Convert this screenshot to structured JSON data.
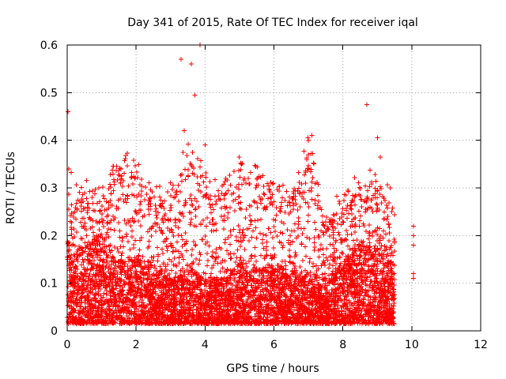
{
  "chart_data": {
    "type": "scatter",
    "title": "Day 341 of 2015, Rate Of TEC Index for receiver iqal",
    "xlabel": "GPS time / hours",
    "ylabel": "ROTI / TECUs",
    "xlim": [
      0,
      12
    ],
    "ylim": [
      0,
      0.6
    ],
    "x_ticks": [
      0,
      2,
      4,
      6,
      8,
      10,
      12
    ],
    "x_tick_labels": [
      "0",
      "2",
      "4",
      "6",
      "8",
      "10",
      "12"
    ],
    "y_ticks": [
      0,
      0.1,
      0.2,
      0.3,
      0.4,
      0.5,
      0.6
    ],
    "y_tick_labels": [
      "0",
      "0.1",
      "0.2",
      "0.3",
      "0.4",
      "0.5",
      "0.6"
    ],
    "grid": true,
    "marker": "+",
    "marker_color": "#ff0000",
    "sampling": {
      "main_start_hours": 0.0,
      "main_end_hours": 9.5,
      "gap_after_hours": 10.0,
      "approx_points": 6400,
      "note": "Dense point cloud; envelope values estimated from the figure"
    },
    "envelope": {
      "x": [
        0.0,
        0.5,
        1.0,
        1.5,
        2.0,
        2.5,
        3.0,
        3.5,
        4.0,
        4.5,
        5.0,
        5.5,
        6.0,
        6.5,
        7.0,
        7.5,
        8.0,
        8.5,
        9.0,
        9.5
      ],
      "typical_max": [
        0.26,
        0.29,
        0.27,
        0.34,
        0.33,
        0.27,
        0.28,
        0.36,
        0.31,
        0.28,
        0.33,
        0.31,
        0.28,
        0.27,
        0.37,
        0.22,
        0.25,
        0.31,
        0.3,
        0.26
      ],
      "median": [
        0.1,
        0.1,
        0.12,
        0.08,
        0.09,
        0.08,
        0.06,
        0.08,
        0.06,
        0.06,
        0.08,
        0.07,
        0.08,
        0.07,
        0.07,
        0.06,
        0.08,
        0.11,
        0.1,
        0.08
      ]
    },
    "notable_points": [
      {
        "x": 0.02,
        "y": 0.46
      },
      {
        "x": 0.05,
        "y": 0.34
      },
      {
        "x": 3.3,
        "y": 0.57
      },
      {
        "x": 3.6,
        "y": 0.56
      },
      {
        "x": 3.85,
        "y": 0.6
      },
      {
        "x": 3.7,
        "y": 0.495
      },
      {
        "x": 3.4,
        "y": 0.42
      },
      {
        "x": 4.0,
        "y": 0.39
      },
      {
        "x": 7.1,
        "y": 0.41
      },
      {
        "x": 8.7,
        "y": 0.475
      },
      {
        "x": 9.0,
        "y": 0.405
      }
    ],
    "late_points": [
      {
        "x": 10.05,
        "y": 0.22
      },
      {
        "x": 10.05,
        "y": 0.2
      },
      {
        "x": 10.05,
        "y": 0.18
      },
      {
        "x": 10.05,
        "y": 0.12
      },
      {
        "x": 10.05,
        "y": 0.11
      }
    ]
  }
}
